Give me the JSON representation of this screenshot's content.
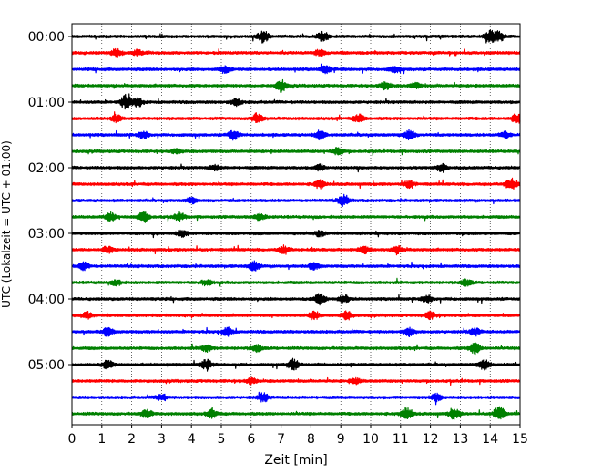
{
  "chart_data": {
    "type": "line",
    "title": "",
    "xlabel": "Zeit  [min]",
    "ylabel": "UTC (Lokalzeit = UTC + 01:00)",
    "xlim": [
      0,
      15
    ],
    "x_ticks": [
      "0",
      "1",
      "2",
      "3",
      "4",
      "5",
      "6",
      "7",
      "8",
      "9",
      "10",
      "11",
      "12",
      "13",
      "14",
      "15"
    ],
    "y_tick_labels": [
      "00:00",
      "01:00",
      "02:00",
      "03:00",
      "04:00",
      "05:00"
    ],
    "y_tick_row_index": [
      0,
      4,
      8,
      12,
      16,
      20
    ],
    "trace_count": 24,
    "trace_colors": [
      "#000000",
      "#ff0000",
      "#0000ff",
      "#008000"
    ],
    "grid": "vertical dotted",
    "series": [
      {
        "label": "00:00",
        "bursts": [
          [
            6.4,
            0.9
          ],
          [
            8.4,
            0.7
          ],
          [
            14.0,
            0.8
          ],
          [
            14.3,
            0.7
          ]
        ]
      },
      {
        "label": "00:15",
        "bursts": [
          [
            1.5,
            0.6
          ],
          [
            2.2,
            0.4
          ],
          [
            8.3,
            0.4
          ]
        ]
      },
      {
        "label": "00:30",
        "bursts": [
          [
            5.1,
            0.5
          ],
          [
            8.5,
            0.5
          ],
          [
            10.8,
            0.4
          ]
        ]
      },
      {
        "label": "00:45",
        "bursts": [
          [
            7.0,
            0.9
          ],
          [
            10.5,
            0.5
          ],
          [
            11.5,
            0.4
          ]
        ]
      },
      {
        "label": "01:00",
        "bursts": [
          [
            1.8,
            1.0
          ],
          [
            2.2,
            0.6
          ],
          [
            5.5,
            0.5
          ]
        ]
      },
      {
        "label": "01:15",
        "bursts": [
          [
            1.5,
            0.5
          ],
          [
            6.2,
            0.7
          ],
          [
            9.6,
            0.6
          ],
          [
            14.9,
            0.7
          ]
        ]
      },
      {
        "label": "01:30",
        "bursts": [
          [
            2.4,
            0.5
          ],
          [
            5.4,
            0.7
          ],
          [
            8.3,
            0.6
          ],
          [
            11.3,
            0.7
          ],
          [
            14.5,
            0.5
          ]
        ]
      },
      {
        "label": "01:45",
        "bursts": [
          [
            8.9,
            0.5
          ],
          [
            3.5,
            0.3
          ]
        ]
      },
      {
        "label": "02:00",
        "bursts": [
          [
            4.8,
            0.4
          ],
          [
            8.3,
            0.4
          ],
          [
            12.4,
            0.6
          ]
        ]
      },
      {
        "label": "02:15",
        "bursts": [
          [
            8.3,
            0.6
          ],
          [
            11.3,
            0.5
          ],
          [
            14.7,
            0.8
          ]
        ]
      },
      {
        "label": "02:30",
        "bursts": [
          [
            9.1,
            0.8
          ],
          [
            4.0,
            0.4
          ]
        ]
      },
      {
        "label": "02:45",
        "bursts": [
          [
            1.3,
            0.6
          ],
          [
            2.4,
            0.8
          ],
          [
            3.6,
            0.6
          ],
          [
            6.3,
            0.5
          ]
        ]
      },
      {
        "label": "03:00",
        "bursts": [
          [
            3.7,
            0.5
          ],
          [
            8.3,
            0.4
          ]
        ]
      },
      {
        "label": "03:15",
        "bursts": [
          [
            1.2,
            0.5
          ],
          [
            7.1,
            0.6
          ],
          [
            9.8,
            0.5
          ],
          [
            10.9,
            0.5
          ]
        ]
      },
      {
        "label": "03:30",
        "bursts": [
          [
            0.4,
            0.6
          ],
          [
            6.1,
            0.7
          ],
          [
            8.1,
            0.5
          ]
        ]
      },
      {
        "label": "03:45",
        "bursts": [
          [
            1.5,
            0.4
          ],
          [
            4.5,
            0.4
          ],
          [
            13.2,
            0.5
          ]
        ]
      },
      {
        "label": "04:00",
        "bursts": [
          [
            8.3,
            0.8
          ],
          [
            9.1,
            0.6
          ],
          [
            11.9,
            0.5
          ]
        ]
      },
      {
        "label": "04:15",
        "bursts": [
          [
            0.5,
            0.5
          ],
          [
            8.1,
            0.6
          ],
          [
            9.2,
            0.7
          ],
          [
            12.0,
            0.5
          ]
        ]
      },
      {
        "label": "04:30",
        "bursts": [
          [
            1.2,
            0.6
          ],
          [
            5.2,
            0.6
          ],
          [
            11.3,
            0.6
          ],
          [
            13.5,
            0.5
          ]
        ]
      },
      {
        "label": "04:45",
        "bursts": [
          [
            4.5,
            0.5
          ],
          [
            6.2,
            0.5
          ],
          [
            13.5,
            0.8
          ]
        ]
      },
      {
        "label": "05:00",
        "bursts": [
          [
            1.2,
            0.6
          ],
          [
            4.5,
            0.7
          ],
          [
            7.4,
            0.8
          ],
          [
            13.8,
            0.7
          ]
        ]
      },
      {
        "label": "05:15",
        "bursts": [
          [
            6.0,
            0.4
          ],
          [
            9.5,
            0.4
          ]
        ]
      },
      {
        "label": "05:30",
        "bursts": [
          [
            3.0,
            0.5
          ],
          [
            6.4,
            0.6
          ],
          [
            12.2,
            0.5
          ]
        ]
      },
      {
        "label": "05:45",
        "bursts": [
          [
            2.5,
            0.6
          ],
          [
            4.7,
            0.6
          ],
          [
            11.2,
            0.9
          ],
          [
            12.8,
            0.7
          ],
          [
            14.3,
            1.2
          ]
        ]
      }
    ]
  }
}
